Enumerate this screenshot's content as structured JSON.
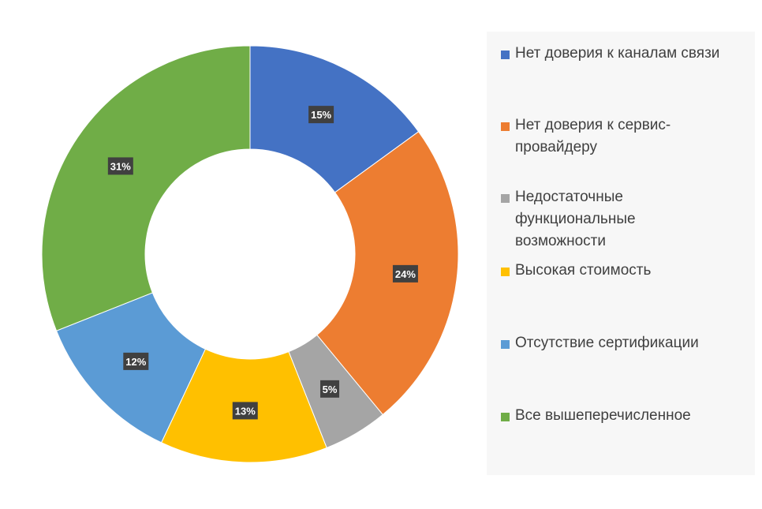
{
  "chart_data": {
    "type": "pie",
    "donut": true,
    "legend_position": "right",
    "categories": [
      "Нет доверия к каналам связи",
      "Нет доверия к сервис-провайдеру",
      "Недостаточные функциональные возможности",
      "Высокая стоимость",
      "Отсутствие сертификации",
      "Все вышеперечисленное"
    ],
    "values": [
      15,
      24,
      5,
      13,
      12,
      31
    ],
    "data_labels": [
      "15%",
      "24%",
      "5%",
      "13%",
      "12%",
      "31%"
    ],
    "colors": [
      "#4472c4",
      "#ed7d31",
      "#a5a5a5",
      "#ffc000",
      "#5b9bd5",
      "#70ad47"
    ]
  },
  "legend": {
    "items": [
      {
        "lines": [
          "Нет доверия к каналам связи"
        ]
      },
      {
        "lines": [
          "Нет доверия к сервис-",
          "провайдеру"
        ]
      },
      {
        "lines": [
          "Недостаточные",
          "функциональные",
          "возможности"
        ]
      },
      {
        "lines": [
          "Высокая стоимость"
        ]
      },
      {
        "lines": [
          "Отсутствие сертификации"
        ]
      },
      {
        "lines": [
          "Все вышеперечисленное"
        ]
      }
    ]
  }
}
